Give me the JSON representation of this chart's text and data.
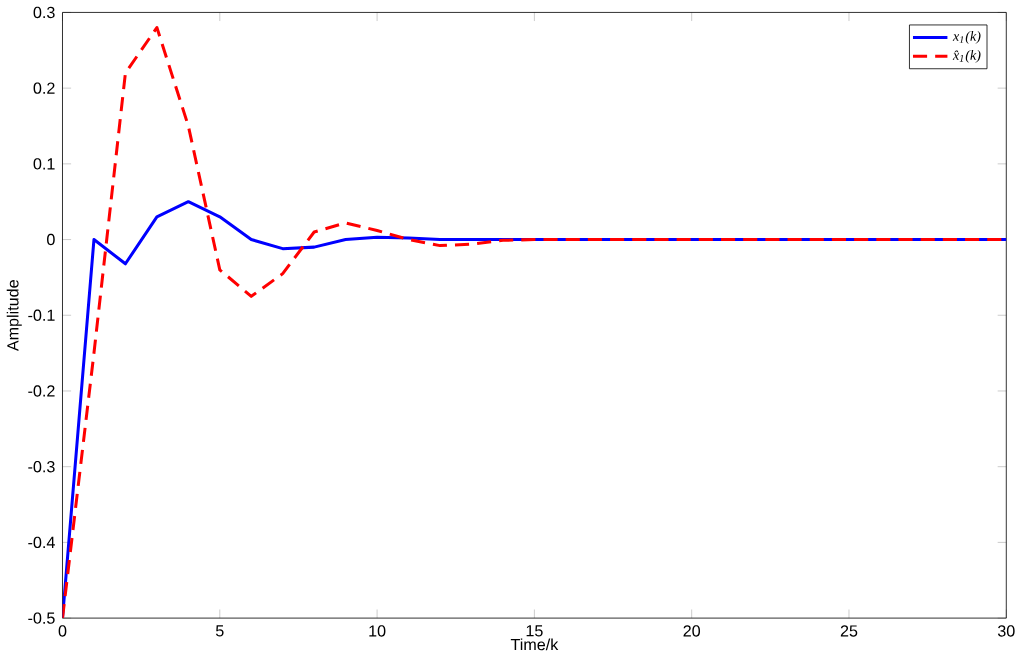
{
  "chart_data": {
    "type": "line",
    "xlabel": "Time/k",
    "ylabel": "Amplitude",
    "x": [
      0,
      1,
      2,
      3,
      4,
      5,
      6,
      7,
      8,
      9,
      10,
      11,
      12,
      13,
      14,
      15,
      16,
      17,
      18,
      19,
      20,
      21,
      22,
      23,
      24,
      25,
      26,
      27,
      28,
      29,
      30
    ],
    "series": [
      {
        "name": "x$_{1}$(k)",
        "color": "#0000ff",
        "line_style": "solid",
        "values": [
          -0.5,
          0,
          -0.032,
          0.03,
          0.05,
          0.03,
          0,
          -0.012,
          -0.01,
          0,
          0.003,
          0.002,
          0,
          0,
          0,
          0,
          0,
          0,
          0,
          0,
          0,
          0,
          0,
          0,
          0,
          0,
          0,
          0,
          0,
          0,
          0
        ]
      },
      {
        "name": "x̂$_{1}$(k)",
        "color": "#ff0000",
        "line_style": "dashed",
        "values": [
          -0.5,
          -0.15,
          0.22,
          0.28,
          0.15,
          -0.04,
          -0.075,
          -0.045,
          0.01,
          0.022,
          0.012,
          0,
          -0.008,
          -0.006,
          -0.001,
          0,
          0,
          0,
          0,
          0,
          0,
          0,
          0,
          0,
          0,
          0,
          0,
          0,
          0,
          0,
          0
        ]
      }
    ],
    "xlim": [
      0,
      30
    ],
    "ylim": [
      -0.5,
      0.3
    ],
    "xticks": [
      0,
      5,
      10,
      15,
      20,
      25,
      30
    ],
    "yticks": [
      -0.5,
      -0.4,
      -0.3,
      -0.2,
      -0.1,
      0,
      0.1,
      0.2,
      0.3
    ],
    "grid": false,
    "legend": "top right",
    "marker": "none"
  }
}
